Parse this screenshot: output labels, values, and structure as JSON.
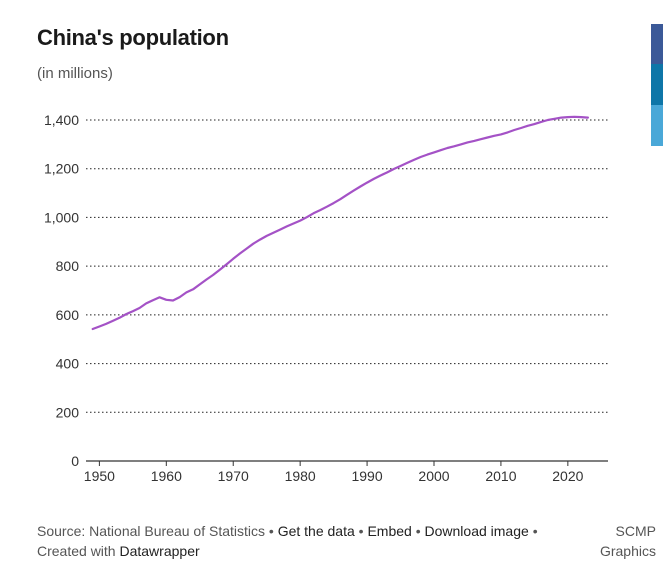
{
  "header": {
    "title": "China's population",
    "subtitle": "(in millions)"
  },
  "chart_data": {
    "type": "line",
    "title": "China's population",
    "subtitle": "(in millions)",
    "xlabel": "",
    "ylabel": "",
    "xlim": [
      1948,
      2026
    ],
    "ylim": [
      0,
      1400
    ],
    "grid": true,
    "y_ticks": [
      0,
      200,
      400,
      600,
      800,
      1000,
      1200,
      1400
    ],
    "y_tick_labels": [
      "0",
      "200",
      "400",
      "600",
      "800",
      "1,000",
      "1,200",
      "1,400"
    ],
    "x_ticks": [
      1950,
      1960,
      1970,
      1980,
      1990,
      2000,
      2010,
      2020
    ],
    "x_tick_labels": [
      "1950",
      "1960",
      "1970",
      "1980",
      "1990",
      "2000",
      "2010",
      "2020"
    ],
    "series": [
      {
        "name": "Population",
        "color": "#a452c6",
        "x": [
          1949,
          1950,
          1951,
          1952,
          1953,
          1954,
          1955,
          1956,
          1957,
          1958,
          1959,
          1960,
          1961,
          1962,
          1963,
          1964,
          1965,
          1966,
          1967,
          1968,
          1969,
          1970,
          1971,
          1972,
          1973,
          1974,
          1975,
          1976,
          1977,
          1978,
          1979,
          1980,
          1981,
          1982,
          1983,
          1984,
          1985,
          1986,
          1987,
          1988,
          1989,
          1990,
          1991,
          1992,
          1993,
          1994,
          1995,
          1996,
          1997,
          1998,
          1999,
          2000,
          2001,
          2002,
          2003,
          2004,
          2005,
          2006,
          2007,
          2008,
          2009,
          2010,
          2011,
          2012,
          2013,
          2014,
          2015,
          2016,
          2017,
          2018,
          2019,
          2020,
          2021,
          2022,
          2023
        ],
        "values": [
          542,
          552,
          563,
          575,
          588,
          603,
          615,
          628,
          647,
          660,
          672,
          662,
          659,
          673,
          692,
          705,
          725,
          745,
          764,
          785,
          807,
          830,
          852,
          872,
          892,
          909,
          924,
          937,
          950,
          963,
          975,
          987,
          1001,
          1017,
          1030,
          1044,
          1059,
          1075,
          1093,
          1110,
          1127,
          1143,
          1158,
          1172,
          1185,
          1199,
          1211,
          1224,
          1236,
          1248,
          1258,
          1267,
          1276,
          1285,
          1292,
          1300,
          1308,
          1314,
          1321,
          1328,
          1335,
          1341,
          1349,
          1359,
          1367,
          1376,
          1383,
          1392,
          1400,
          1405,
          1410,
          1412,
          1413,
          1412,
          1410
        ]
      }
    ]
  },
  "footer": {
    "source_label": "Source: National Bureau of Statistics",
    "get_data": "Get the data",
    "embed": "Embed",
    "download": "Download image",
    "created_with": "Created with",
    "datawrapper": "Datawrapper",
    "separator": "•"
  },
  "credit": {
    "line1": "SCMP",
    "line2": "Graphics"
  },
  "share": {
    "colors": [
      "#3b5998",
      "#0e76a8",
      "#4aa8d8"
    ]
  }
}
